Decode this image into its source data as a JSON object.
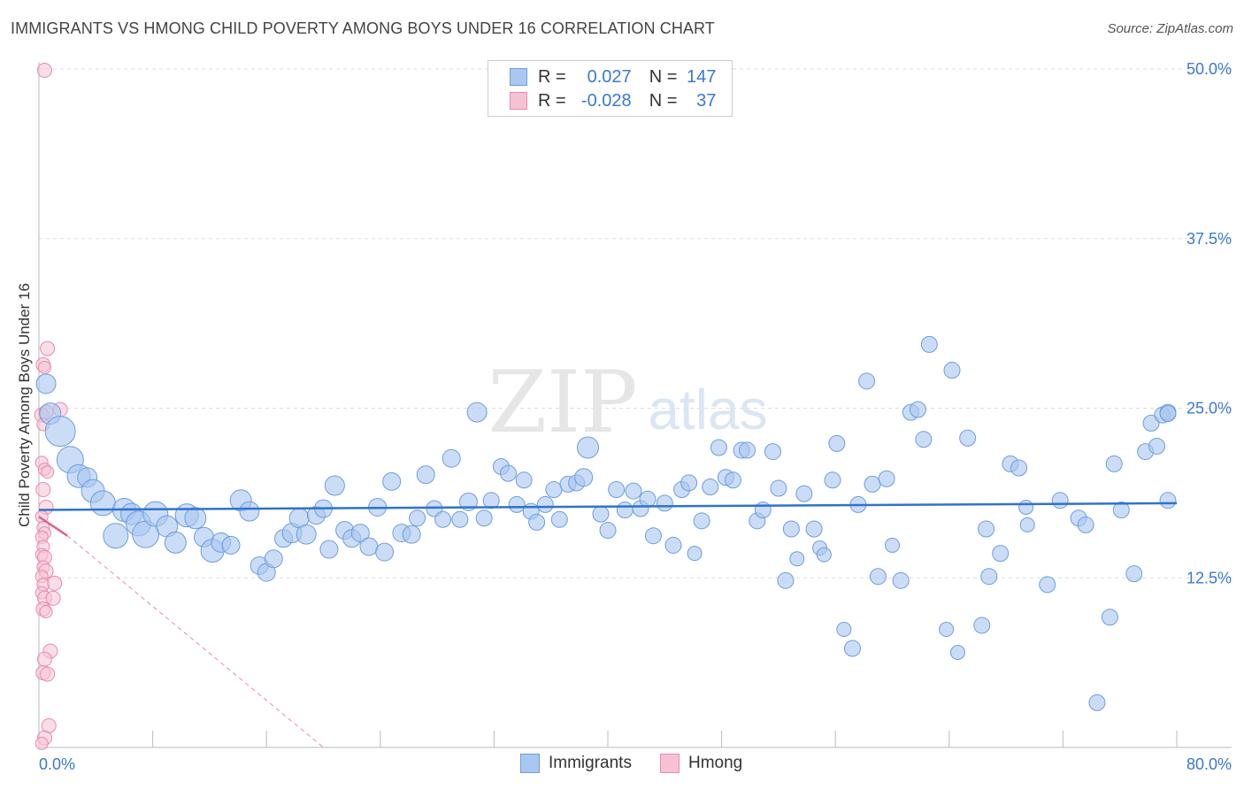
{
  "header": {
    "title": "IMMIGRANTS VS HMONG CHILD POVERTY AMONG BOYS UNDER 16 CORRELATION CHART",
    "source": "Source: ZipAtlas.com"
  },
  "legend": {
    "r_label": "R =",
    "n_label": "N =",
    "rows": [
      {
        "r": "0.027",
        "n": "147"
      },
      {
        "r": "-0.028",
        "n": "37"
      }
    ]
  },
  "watermark": {
    "zip": "ZIP",
    "atlas": "atlas"
  },
  "colors": {
    "immigrants_fill": "#a9c7f0",
    "immigrants_stroke": "#6d9de0",
    "immigrants_line": "#2f73cc",
    "hmong_fill": "#f6c2d3",
    "hmong_stroke": "#e98aaa",
    "hmong_line": "#e4608c",
    "axis_label": "#3a78d4"
  },
  "chart_data": {
    "type": "scatter",
    "title": "IMMIGRANTS VS HMONG CHILD POVERTY AMONG BOYS UNDER 16 CORRELATION CHART",
    "xlabel": "",
    "ylabel": "Child Poverty Among Boys Under 16",
    "xlim": [
      0,
      80
    ],
    "ylim": [
      0,
      50
    ],
    "x_tick_labels": [
      "0.0%",
      "80.0%"
    ],
    "y_ticks": [
      12.5,
      25.0,
      37.5,
      50.0
    ],
    "y_tick_labels": [
      "12.5%",
      "25.0%",
      "37.5%",
      "50.0%"
    ],
    "grid": true,
    "legend_position": "top-center",
    "series": [
      {
        "name": "Immigrants",
        "r": 0.027,
        "n": 147,
        "trend": {
          "x": [
            0,
            80
          ],
          "y": [
            17.5,
            18.0
          ]
        },
        "points": [
          [
            0.5,
            26.8,
            11
          ],
          [
            0.8,
            24.6,
            12
          ],
          [
            1.5,
            23.3,
            17
          ],
          [
            2.2,
            21.2,
            15
          ],
          [
            2.8,
            20.0,
            13
          ],
          [
            3.4,
            19.9,
            11
          ],
          [
            3.8,
            18.9,
            13
          ],
          [
            4.5,
            18.0,
            14
          ],
          [
            5.4,
            15.6,
            14
          ],
          [
            6.0,
            17.5,
            13
          ],
          [
            6.5,
            17.2,
            12
          ],
          [
            7.0,
            16.5,
            14
          ],
          [
            7.5,
            15.7,
            15
          ],
          [
            8.2,
            17.2,
            14
          ],
          [
            9.0,
            16.3,
            12
          ],
          [
            9.6,
            15.1,
            12
          ],
          [
            10.4,
            17.1,
            13
          ],
          [
            11.0,
            16.9,
            12
          ],
          [
            11.6,
            15.5,
            11
          ],
          [
            12.2,
            14.5,
            13
          ],
          [
            12.8,
            15.1,
            11
          ],
          [
            13.5,
            14.9,
            10
          ],
          [
            14.2,
            18.2,
            12
          ],
          [
            14.8,
            17.4,
            11
          ],
          [
            15.5,
            13.4,
            10
          ],
          [
            16.0,
            12.9,
            10
          ],
          [
            16.5,
            13.9,
            10
          ],
          [
            17.2,
            15.4,
            10
          ],
          [
            17.8,
            15.8,
            11
          ],
          [
            18.3,
            16.9,
            11
          ],
          [
            18.8,
            15.7,
            11
          ],
          [
            19.5,
            17.1,
            10
          ],
          [
            20.0,
            17.6,
            10
          ],
          [
            20.4,
            14.6,
            10
          ],
          [
            20.8,
            19.3,
            11
          ],
          [
            21.5,
            16.0,
            10
          ],
          [
            22.0,
            15.4,
            10
          ],
          [
            22.6,
            15.8,
            10
          ],
          [
            23.2,
            14.8,
            10
          ],
          [
            23.8,
            17.7,
            10
          ],
          [
            24.3,
            14.4,
            10
          ],
          [
            24.8,
            19.6,
            10
          ],
          [
            25.5,
            15.8,
            10
          ],
          [
            26.2,
            15.7,
            10
          ],
          [
            26.6,
            16.9,
            9
          ],
          [
            27.2,
            20.1,
            10
          ],
          [
            27.8,
            17.6,
            9
          ],
          [
            28.4,
            16.8,
            9
          ],
          [
            29.0,
            21.3,
            10
          ],
          [
            29.6,
            16.8,
            9
          ],
          [
            30.2,
            18.1,
            10
          ],
          [
            30.8,
            24.7,
            11
          ],
          [
            31.3,
            16.9,
            9
          ],
          [
            31.8,
            18.2,
            9
          ],
          [
            32.5,
            20.7,
            9
          ],
          [
            33.0,
            20.2,
            9
          ],
          [
            33.6,
            17.9,
            9
          ],
          [
            34.1,
            19.7,
            9
          ],
          [
            34.6,
            17.4,
            9
          ],
          [
            35.0,
            16.6,
            9
          ],
          [
            35.6,
            17.9,
            9
          ],
          [
            36.2,
            19.0,
            9
          ],
          [
            36.6,
            16.8,
            9
          ],
          [
            37.2,
            19.4,
            9
          ],
          [
            37.8,
            19.5,
            9
          ],
          [
            38.3,
            19.9,
            10
          ],
          [
            38.6,
            22.1,
            12
          ],
          [
            39.5,
            17.2,
            9
          ],
          [
            40.0,
            16.0,
            9
          ],
          [
            40.6,
            19.0,
            9
          ],
          [
            41.2,
            17.5,
            9
          ],
          [
            41.8,
            18.9,
            9
          ],
          [
            42.3,
            17.6,
            9
          ],
          [
            42.8,
            18.3,
            9
          ],
          [
            43.2,
            15.6,
            9
          ],
          [
            44.0,
            18.0,
            9
          ],
          [
            44.6,
            14.9,
            9
          ],
          [
            45.2,
            19.0,
            9
          ],
          [
            45.7,
            19.5,
            9
          ],
          [
            46.1,
            14.3,
            8
          ],
          [
            46.6,
            16.7,
            9
          ],
          [
            47.2,
            19.2,
            9
          ],
          [
            47.8,
            22.1,
            9
          ],
          [
            48.3,
            19.9,
            9
          ],
          [
            48.8,
            19.7,
            9
          ],
          [
            49.4,
            21.9,
            9
          ],
          [
            49.8,
            21.9,
            9
          ],
          [
            50.5,
            16.7,
            9
          ],
          [
            50.9,
            17.5,
            9
          ],
          [
            51.6,
            21.8,
            9
          ],
          [
            52.0,
            19.1,
            9
          ],
          [
            52.5,
            12.3,
            9
          ],
          [
            52.9,
            16.1,
            9
          ],
          [
            53.3,
            13.9,
            8
          ],
          [
            53.8,
            18.7,
            9
          ],
          [
            54.5,
            16.1,
            9
          ],
          [
            54.9,
            14.7,
            8
          ],
          [
            55.2,
            14.2,
            8
          ],
          [
            55.8,
            19.7,
            9
          ],
          [
            56.1,
            22.4,
            9
          ],
          [
            56.6,
            8.7,
            8
          ],
          [
            57.2,
            7.3,
            9
          ],
          [
            57.6,
            17.9,
            9
          ],
          [
            58.2,
            27.0,
            9
          ],
          [
            58.6,
            19.4,
            9
          ],
          [
            59.0,
            12.6,
            9
          ],
          [
            59.6,
            19.8,
            9
          ],
          [
            60.0,
            14.9,
            8
          ],
          [
            60.6,
            12.3,
            9
          ],
          [
            61.3,
            24.7,
            9
          ],
          [
            61.8,
            24.9,
            9
          ],
          [
            62.2,
            22.7,
            9
          ],
          [
            62.6,
            29.7,
            9
          ],
          [
            63.8,
            8.7,
            8
          ],
          [
            64.2,
            27.8,
            9
          ],
          [
            64.6,
            7.0,
            8
          ],
          [
            65.3,
            22.8,
            9
          ],
          [
            66.3,
            9.0,
            9
          ],
          [
            66.6,
            16.1,
            9
          ],
          [
            66.8,
            12.6,
            9
          ],
          [
            67.6,
            14.3,
            9
          ],
          [
            68.3,
            20.9,
            9
          ],
          [
            68.9,
            20.6,
            9
          ],
          [
            69.4,
            17.7,
            8
          ],
          [
            69.5,
            16.4,
            8
          ],
          [
            70.9,
            12.0,
            9
          ],
          [
            71.8,
            18.2,
            9
          ],
          [
            73.1,
            16.9,
            9
          ],
          [
            73.6,
            16.4,
            9
          ],
          [
            74.4,
            3.3,
            9
          ],
          [
            75.3,
            9.6,
            9
          ],
          [
            75.6,
            20.9,
            9
          ],
          [
            76.1,
            17.5,
            9
          ],
          [
            77.0,
            12.8,
            9
          ],
          [
            77.8,
            21.8,
            9
          ],
          [
            78.2,
            23.9,
            9
          ],
          [
            78.6,
            22.2,
            9
          ],
          [
            79.0,
            24.5,
            9
          ],
          [
            79.5,
            24.7,
            9
          ],
          [
            80.5,
            18.2,
            9
          ],
          [
            82.5,
            24.6,
            9
          ]
        ]
      },
      {
        "name": "Hmong",
        "r": -0.028,
        "n": 37,
        "trend": {
          "x": [
            0,
            2.0
          ],
          "y": [
            17.0,
            15.6
          ]
        },
        "trend_extension": {
          "x": [
            2.0,
            20.0
          ],
          "y": [
            15.6,
            0.0
          ]
        },
        "points": [
          [
            0.4,
            49.9,
            8
          ],
          [
            0.3,
            28.2,
            8
          ],
          [
            0.4,
            28.0,
            7
          ],
          [
            0.6,
            29.4,
            8
          ],
          [
            0.2,
            24.5,
            8
          ],
          [
            0.5,
            24.7,
            8
          ],
          [
            1.5,
            24.9,
            8
          ],
          [
            0.3,
            23.8,
            7
          ],
          [
            0.2,
            21.0,
            7
          ],
          [
            0.4,
            20.5,
            7
          ],
          [
            0.6,
            20.3,
            7
          ],
          [
            0.3,
            19.0,
            8
          ],
          [
            0.5,
            17.7,
            8
          ],
          [
            0.2,
            17.0,
            7
          ],
          [
            0.3,
            16.2,
            7
          ],
          [
            0.4,
            15.8,
            7
          ],
          [
            0.2,
            15.5,
            7
          ],
          [
            0.3,
            14.8,
            7
          ],
          [
            0.2,
            14.2,
            7
          ],
          [
            0.4,
            14.0,
            8
          ],
          [
            0.3,
            13.3,
            7
          ],
          [
            0.5,
            13.0,
            8
          ],
          [
            0.2,
            12.6,
            7
          ],
          [
            0.3,
            12.0,
            7
          ],
          [
            1.1,
            12.1,
            8
          ],
          [
            0.2,
            11.4,
            7
          ],
          [
            0.4,
            11.0,
            8
          ],
          [
            1.0,
            11.0,
            8
          ],
          [
            0.3,
            10.2,
            8
          ],
          [
            0.5,
            10.0,
            7
          ],
          [
            0.8,
            7.1,
            8
          ],
          [
            0.4,
            6.5,
            8
          ],
          [
            0.3,
            5.5,
            8
          ],
          [
            0.6,
            5.4,
            8
          ],
          [
            0.7,
            1.6,
            8
          ],
          [
            0.4,
            0.7,
            8
          ],
          [
            0.2,
            0.3,
            7
          ]
        ]
      }
    ]
  }
}
